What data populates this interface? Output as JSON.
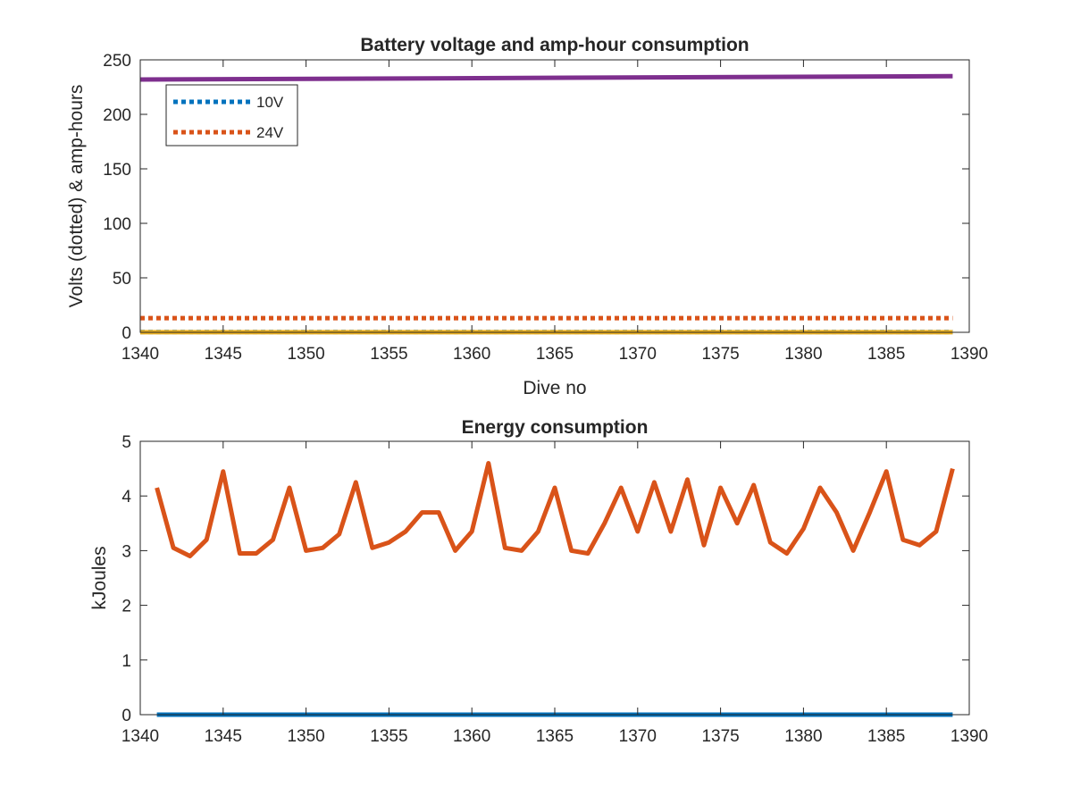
{
  "chart_data": [
    {
      "type": "line",
      "title": "Battery voltage and amp-hour consumption",
      "xlabel": "Dive no",
      "ylabel": "Volts (dotted) & amp-hours",
      "xlim": [
        1340,
        1390
      ],
      "ylim": [
        0,
        250
      ],
      "xticks": [
        1340,
        1345,
        1350,
        1355,
        1360,
        1365,
        1370,
        1375,
        1380,
        1385,
        1390
      ],
      "yticks": [
        0,
        50,
        100,
        150,
        200,
        250
      ],
      "grid": false,
      "legend_position": "top-left",
      "series": [
        {
          "name": "10V",
          "style": "dotted",
          "color": "#0072BD",
          "x": [
            1340,
            1389
          ],
          "y": [
            0.3,
            0.3
          ]
        },
        {
          "name": "24V",
          "style": "dotted",
          "color": "#D95319",
          "x": [
            1340,
            1389
          ],
          "y": [
            13,
            13
          ]
        },
        {
          "style": "solid",
          "color": "#EDB120",
          "x": [
            1340,
            1389
          ],
          "y": [
            0.1,
            0.1
          ]
        },
        {
          "style": "solid",
          "color": "#7E2F8E",
          "x": [
            1340,
            1389
          ],
          "y": [
            232,
            235
          ]
        }
      ]
    },
    {
      "type": "line",
      "title": "Energy consumption",
      "xlabel": "",
      "ylabel": "kJoules",
      "xlim": [
        1340,
        1390
      ],
      "ylim": [
        0,
        5
      ],
      "xticks": [
        1340,
        1345,
        1350,
        1355,
        1360,
        1365,
        1370,
        1375,
        1380,
        1385,
        1390
      ],
      "yticks": [
        0,
        1,
        2,
        3,
        4,
        5
      ],
      "grid": false,
      "series": [
        {
          "style": "solid",
          "color": "#0072BD",
          "x": [
            1341,
            1389
          ],
          "y": [
            0,
            0
          ]
        },
        {
          "style": "solid",
          "color": "#D95319",
          "x": [
            1341,
            1342,
            1343,
            1344,
            1345,
            1346,
            1347,
            1348,
            1349,
            1350,
            1351,
            1352,
            1353,
            1354,
            1355,
            1356,
            1357,
            1358,
            1359,
            1360,
            1361,
            1362,
            1363,
            1364,
            1365,
            1366,
            1367,
            1368,
            1369,
            1370,
            1371,
            1372,
            1373,
            1374,
            1375,
            1376,
            1377,
            1378,
            1379,
            1380,
            1381,
            1382,
            1383,
            1384,
            1385,
            1386,
            1387,
            1388,
            1389
          ],
          "y": [
            4.15,
            3.05,
            2.9,
            3.2,
            4.45,
            2.95,
            2.95,
            3.2,
            4.15,
            3.0,
            3.05,
            3.3,
            4.25,
            3.05,
            3.15,
            3.35,
            3.7,
            3.7,
            3.0,
            3.35,
            4.6,
            3.05,
            3.0,
            3.35,
            4.15,
            3.0,
            2.95,
            3.5,
            4.15,
            3.35,
            4.25,
            3.35,
            4.3,
            3.1,
            4.15,
            3.5,
            4.2,
            3.15,
            2.95,
            3.4,
            4.15,
            3.7,
            3.0,
            3.7,
            4.45,
            3.2,
            3.1,
            3.35,
            4.5
          ]
        }
      ]
    }
  ]
}
